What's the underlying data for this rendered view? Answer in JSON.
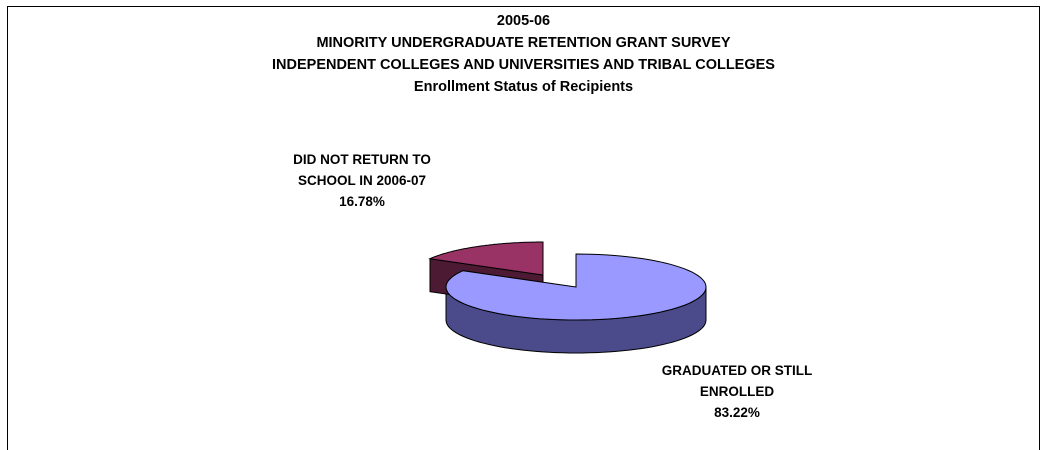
{
  "chart_data": {
    "type": "pie",
    "title_lines": [
      "2005-06",
      "MINORITY UNDERGRADUATE RETENTION GRANT SURVEY",
      "INDEPENDENT COLLEGES AND UNIVERSITIES AND TRIBAL COLLEGES",
      "Enrollment Status of Recipients"
    ],
    "slices": [
      {
        "label_lines": [
          "GRADUATED OR STILL",
          "ENROLLED"
        ],
        "percent_text": "83.22%",
        "value": 83.22,
        "top_color": "#9999ff",
        "side_color": "#4b4b8c"
      },
      {
        "label_lines": [
          "DID NOT RETURN TO",
          "SCHOOL IN 2006-07"
        ],
        "percent_text": "16.78%",
        "value": 16.78,
        "top_color": "#993366",
        "side_color": "#4d1a33"
      }
    ]
  }
}
